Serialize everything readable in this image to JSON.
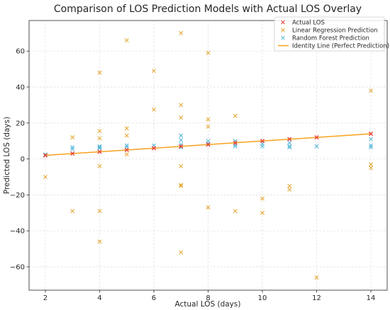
{
  "chart_data": {
    "type": "scatter",
    "title": "Comparison of LOS Prediction Models with Actual LOS Overlay",
    "xlabel": "Actual LOS (days)",
    "ylabel": "Predicted LOS (days)",
    "xlim": [
      1.4,
      14.6
    ],
    "ylim": [
      -73,
      77
    ],
    "x_ticks": [
      2,
      4,
      6,
      8,
      10,
      12,
      14
    ],
    "y_ticks": [
      -60,
      -40,
      -20,
      0,
      20,
      40,
      60
    ],
    "grid": true,
    "legend_position": "top-right",
    "series": [
      {
        "name": "Actual LOS",
        "marker": "x",
        "color": "#e8413b",
        "points": [
          [
            2,
            2
          ],
          [
            3,
            3
          ],
          [
            4,
            4
          ],
          [
            5,
            5
          ],
          [
            6,
            6
          ],
          [
            7,
            7
          ],
          [
            8,
            8
          ],
          [
            9,
            9
          ],
          [
            10,
            10
          ],
          [
            11,
            11
          ],
          [
            12,
            12
          ],
          [
            14,
            14
          ]
        ]
      },
      {
        "name": "Linear Regression Prediction",
        "marker": "x",
        "color": "#e5a93a",
        "points": [
          [
            2,
            -10
          ],
          [
            3,
            12
          ],
          [
            3,
            -29
          ],
          [
            4,
            48
          ],
          [
            4,
            15.5
          ],
          [
            4,
            11.5
          ],
          [
            4,
            -4
          ],
          [
            4,
            -29
          ],
          [
            4,
            -46
          ],
          [
            5,
            66
          ],
          [
            5,
            17
          ],
          [
            5,
            13
          ],
          [
            5,
            2.5
          ],
          [
            6,
            49
          ],
          [
            6,
            27.5
          ],
          [
            7,
            70
          ],
          [
            7,
            30
          ],
          [
            7,
            23
          ],
          [
            7,
            -4
          ],
          [
            7,
            -14.5
          ],
          [
            7,
            -15
          ],
          [
            7,
            -52
          ],
          [
            8,
            59
          ],
          [
            8,
            22
          ],
          [
            8,
            18
          ],
          [
            8,
            -27
          ],
          [
            9,
            24
          ],
          [
            9,
            -29
          ],
          [
            10,
            -22
          ],
          [
            10,
            -30
          ],
          [
            11,
            -15
          ],
          [
            11,
            -17
          ],
          [
            12,
            -66
          ],
          [
            14,
            38
          ],
          [
            14,
            -3
          ],
          [
            14,
            -5
          ]
        ]
      },
      {
        "name": "Random Forest Prediction",
        "marker": "x",
        "color": "#5bbad8",
        "points": [
          [
            2,
            2.5
          ],
          [
            3,
            6.5
          ],
          [
            3,
            5.5
          ],
          [
            4,
            7
          ],
          [
            4,
            6.5
          ],
          [
            4,
            6
          ],
          [
            5,
            7.5
          ],
          [
            5,
            6.5
          ],
          [
            6,
            7.5
          ],
          [
            6,
            6
          ],
          [
            7,
            13
          ],
          [
            7,
            10.5
          ],
          [
            7,
            8
          ],
          [
            7,
            7
          ],
          [
            7,
            6.5
          ],
          [
            8,
            10
          ],
          [
            8,
            8.5
          ],
          [
            8,
            8
          ],
          [
            9,
            10
          ],
          [
            9,
            8
          ],
          [
            9,
            7
          ],
          [
            10,
            8.5
          ],
          [
            10,
            7
          ],
          [
            11,
            9
          ],
          [
            11,
            7
          ],
          [
            11,
            6.5
          ],
          [
            12,
            7
          ],
          [
            14,
            11
          ],
          [
            14,
            7.5
          ],
          [
            14,
            6.5
          ]
        ]
      },
      {
        "name": "Identity Line (Perfect Prediction)",
        "type": "line",
        "color": "#f7a21b",
        "points": [
          [
            2,
            2
          ],
          [
            14,
            14
          ]
        ]
      }
    ]
  }
}
